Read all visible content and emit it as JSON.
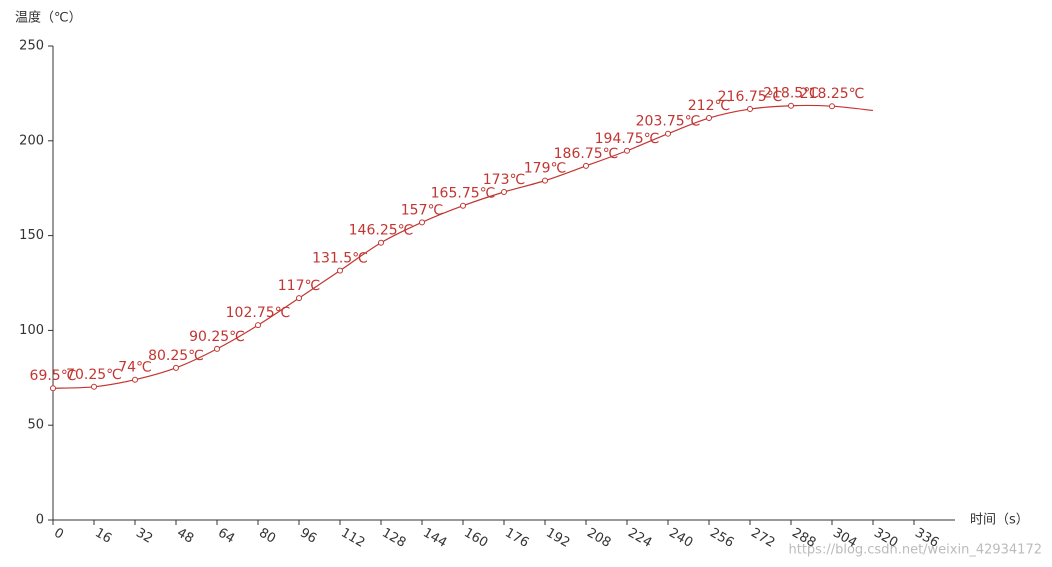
{
  "chart_data": {
    "type": "line",
    "y_axis_label": "温度（℃）",
    "x_axis_label": "时间（s）",
    "watermark": "https://blog.csdn.net/weixin_42934172",
    "x": [
      0,
      16,
      32,
      48,
      64,
      80,
      96,
      112,
      128,
      144,
      160,
      176,
      192,
      208,
      224,
      240,
      256,
      272,
      288,
      304,
      320
    ],
    "series": [
      {
        "color": "#c23531",
        "values": [
          69.5,
          70.25,
          74,
          80.25,
          90.25,
          102.75,
          117,
          131.5,
          146.25,
          157,
          165.75,
          173,
          179,
          186.75,
          194.75,
          203.75,
          212,
          216.75,
          218.5,
          218.25,
          216
        ],
        "value_labels": [
          "69.5℃",
          "70.25℃",
          "74℃",
          "80.25℃",
          "90.25℃",
          "102.75℃",
          "117℃",
          "131.5℃",
          "146.25℃",
          "157℃",
          "165.75℃",
          "173℃",
          "179℃",
          "186.75℃",
          "194.75℃",
          "203.75℃",
          "212℃",
          "216.75℃",
          "218.5℃",
          "218.25℃",
          null
        ]
      }
    ],
    "xlim": [
      0,
      352
    ],
    "xticks": [
      0,
      16,
      32,
      48,
      64,
      80,
      96,
      112,
      128,
      144,
      160,
      176,
      192,
      208,
      224,
      240,
      256,
      272,
      288,
      304,
      320,
      336
    ],
    "ylim": [
      0,
      250
    ],
    "yticks": [
      0,
      50,
      100,
      150,
      200,
      250
    ],
    "grid": false
  }
}
